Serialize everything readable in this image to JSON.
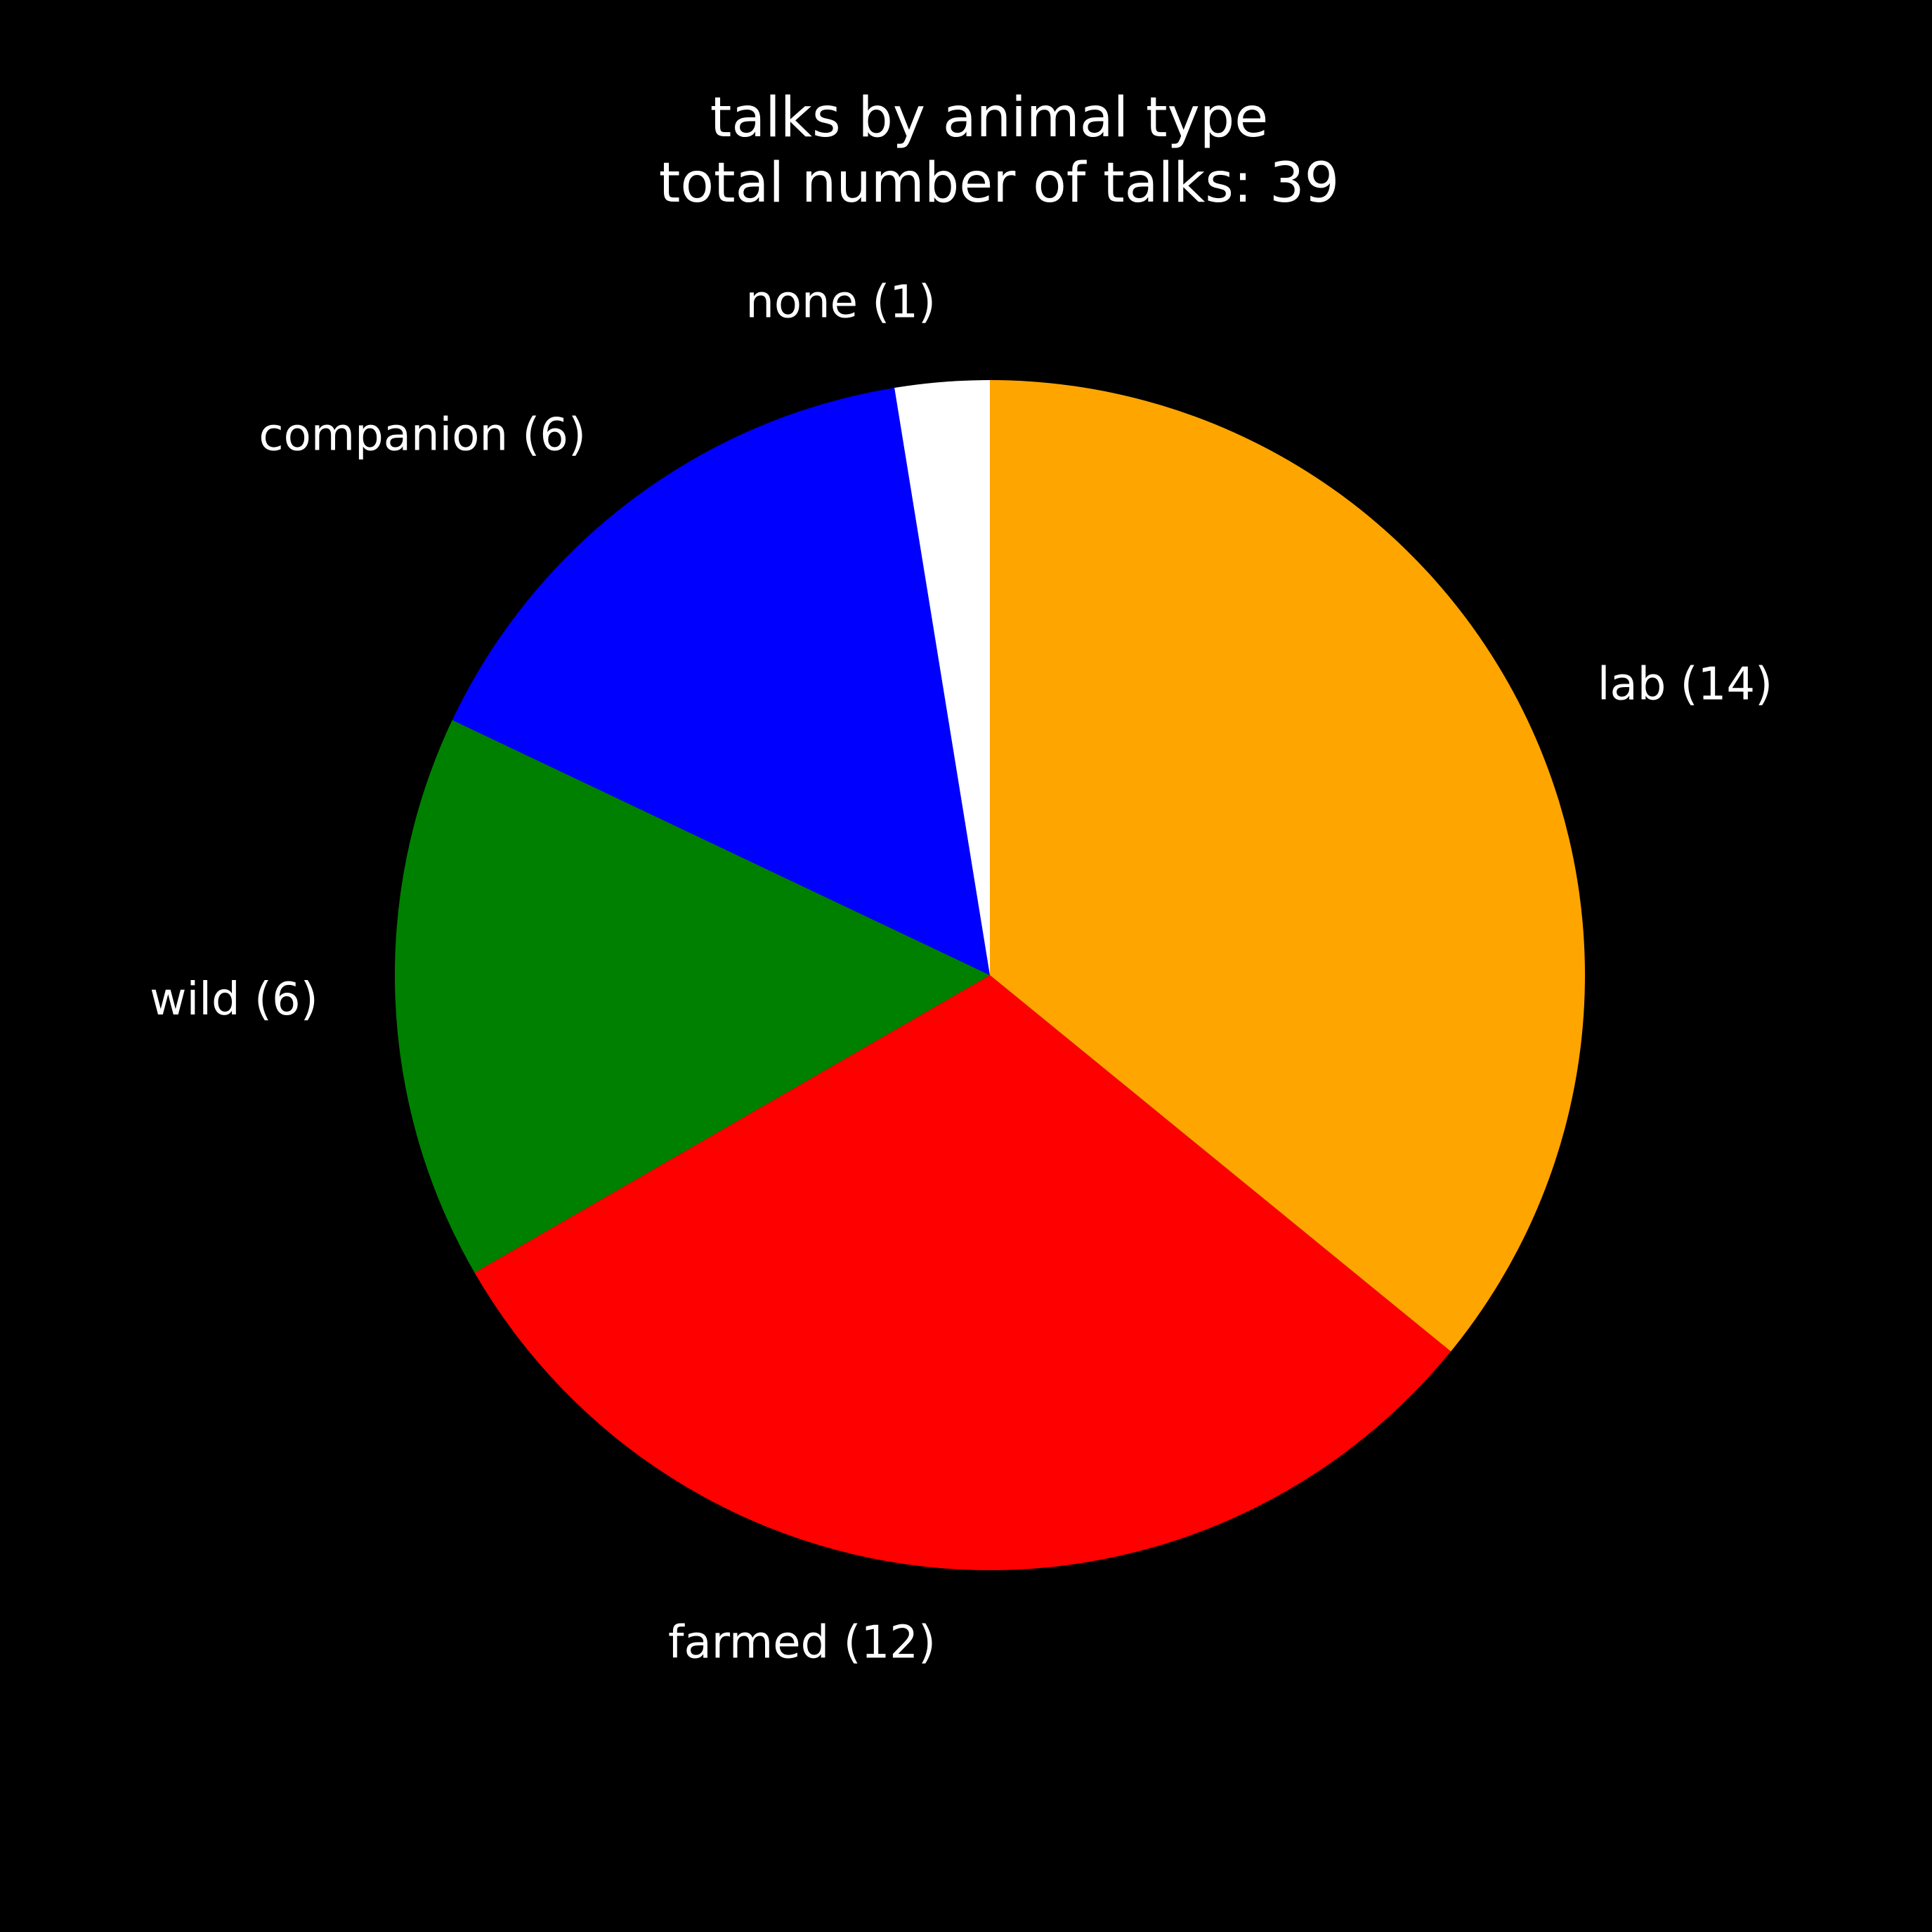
{
  "chart_data": {
    "type": "pie",
    "title_line1": "talks by animal type",
    "title_line2": "total number of talks: 39",
    "total": 39,
    "background": "#000000",
    "text_color": "#ffffff",
    "start": "12 o'clock",
    "direction": "clockwise",
    "slices": [
      {
        "category": "lab",
        "value": 14,
        "label": "lab (14)",
        "color": "#ffa500"
      },
      {
        "category": "farmed",
        "value": 12,
        "label": "farmed (12)",
        "color": "#ff0000"
      },
      {
        "category": "wild",
        "value": 6,
        "label": "wild (6)",
        "color": "#008000"
      },
      {
        "category": "companion",
        "value": 6,
        "label": "companion (6)",
        "color": "#0000ff"
      },
      {
        "category": "none",
        "value": 1,
        "label": "none (1)",
        "color": "#ffffff"
      }
    ]
  }
}
